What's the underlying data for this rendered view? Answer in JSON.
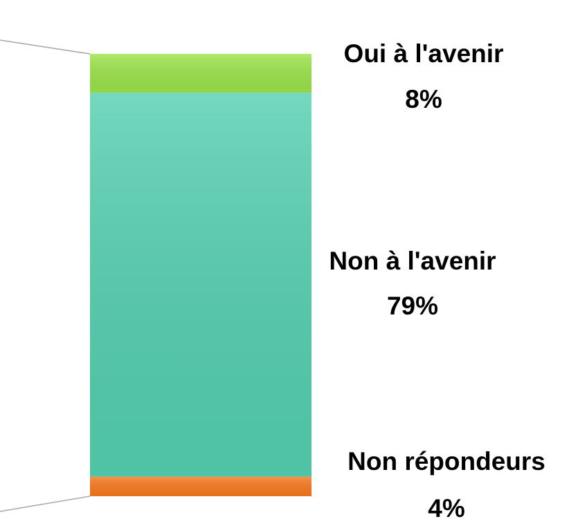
{
  "chart_data": {
    "type": "stacked_bar",
    "categories": [
      "Oui à l'avenir",
      "Non à l'avenir",
      "Non répondeurs"
    ],
    "values": [
      8,
      79,
      4
    ],
    "value_labels": [
      "8%",
      "79%",
      "4%"
    ],
    "colors": [
      "#9be34a",
      "#55d0b0",
      "#f7791e"
    ]
  }
}
